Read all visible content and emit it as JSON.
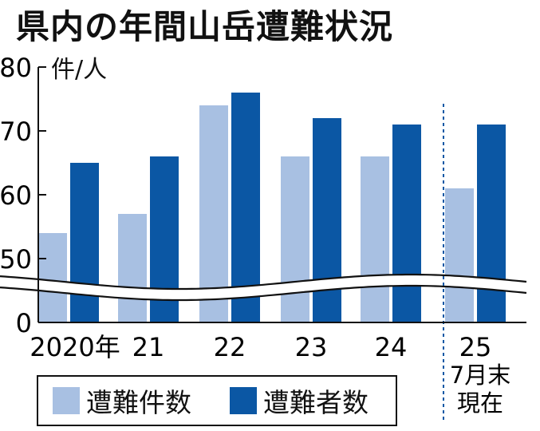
{
  "title": "県内の年間山岳遭難状況",
  "unit_label": "件/人",
  "colors": {
    "incidents": "#a8c0e2",
    "persons": "#0b57a4",
    "axis": "#111111",
    "divider": "#0b57a4"
  },
  "legend": {
    "incidents": "遭難件数",
    "persons": "遭難者数"
  },
  "note": [
    "7月末",
    "現在"
  ],
  "chart_data": {
    "type": "bar",
    "categories": [
      "2020年",
      "21",
      "22",
      "23",
      "24",
      "25"
    ],
    "series": [
      {
        "name": "遭難件数",
        "values": [
          54,
          57,
          74,
          66,
          66,
          61
        ]
      },
      {
        "name": "遭難者数",
        "values": [
          65,
          66,
          76,
          72,
          71,
          71
        ]
      }
    ],
    "yticks": [
      0,
      50,
      60,
      70,
      80
    ],
    "ylim": [
      0,
      80
    ],
    "axis_break": "0–50",
    "grid": false
  }
}
